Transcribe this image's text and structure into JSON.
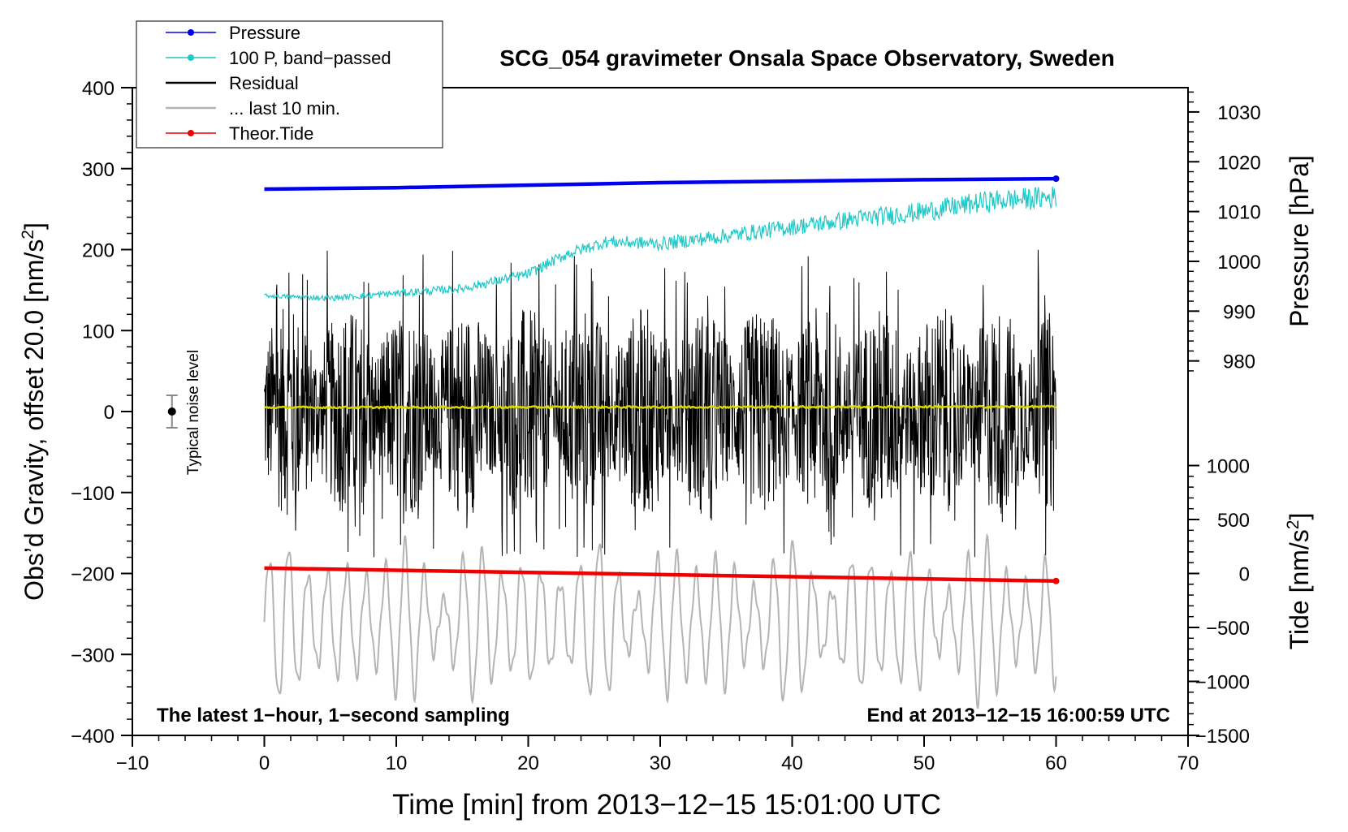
{
  "chart_data": {
    "type": "line",
    "title": "SCG_054 gravimeter Onsala Space Observatory, Sweden",
    "xlabel": "Time [min] from 2013−12−15 15:01:00 UTC",
    "ylabel": "Obs’d Gravity, offset 20.0 [nm/s",
    "ylabel_sup": "2",
    "ylabel_end": "]",
    "right_pressure_label": "Pressure [hPa]",
    "right_tide_label": "Tide [nm/s",
    "right_tide_label_sup": "2",
    "right_tide_label_end": "]",
    "xlim": [
      -10,
      70
    ],
    "ylim": [
      -400,
      400
    ],
    "x_ticks": [
      -10,
      0,
      10,
      20,
      30,
      40,
      50,
      60,
      70
    ],
    "x_tick_labels": [
      "−10",
      "0",
      "10",
      "20",
      "30",
      "40",
      "50",
      "60",
      "70"
    ],
    "y_ticks": [
      400,
      300,
      200,
      100,
      0,
      -100,
      -200,
      -300,
      -400
    ],
    "y_tick_labels": [
      "400",
      "300",
      "200",
      "100",
      "0",
      "−100",
      "−200",
      "−300",
      "−400"
    ],
    "pressure_axis": {
      "ticks": [
        1030,
        1020,
        1010,
        1000,
        990,
        980
      ],
      "tick_labels": [
        "1030",
        "1020",
        "1010",
        "1000",
        "990",
        "980"
      ],
      "gravity_at_1030": 370,
      "gravity_per_hpa": 6.15
    },
    "tide_axis": {
      "ticks": [
        1000,
        500,
        0,
        -500,
        -1000,
        -1500
      ],
      "tick_labels": [
        "1000",
        "500",
        "0",
        "−500",
        "−1000",
        "−1500"
      ],
      "gravity_at_0": -200,
      "gravity_per_unit": 0.1333
    },
    "legend": {
      "position": "top-left",
      "entries": [
        {
          "label": "Pressure",
          "color": "#0000ee",
          "marker": true
        },
        {
          "label": "100 P, band−passed",
          "color": "#20c8c8",
          "marker": true
        },
        {
          "label": "Residual",
          "color": "#000000",
          "marker": false
        },
        {
          "label": "... last 10 min.",
          "color": "#b4b4b4",
          "marker": false
        },
        {
          "label": "Theor.Tide",
          "color": "#ee0000",
          "marker": true
        }
      ]
    },
    "annotations": {
      "noise_label": "Typical noise level",
      "noise_bar": {
        "x": -7,
        "y": 0,
        "low": -20,
        "high": 20
      },
      "bottom_left": "The latest 1−hour, 1−second sampling",
      "bottom_right": "End at 2013−12−15 16:00:59 UTC"
    },
    "series": [
      {
        "name": "Pressure",
        "color": "#0000ee",
        "unit": "hPa",
        "x": [
          0,
          10,
          20,
          30,
          40,
          50,
          60
        ],
        "values": [
          1014.5,
          1014.8,
          1015.3,
          1015.8,
          1016.1,
          1016.4,
          1016.6
        ]
      },
      {
        "name": "100 P, band−passed",
        "color": "#20c8c8",
        "unit": "nm/s2",
        "x": [
          0,
          5,
          10,
          15,
          20,
          23,
          26,
          30,
          35,
          40,
          45,
          50,
          55,
          60
        ],
        "values": [
          143,
          140,
          146,
          152,
          170,
          195,
          210,
          207,
          217,
          228,
          238,
          247,
          260,
          265
        ],
        "noise": 6
      },
      {
        "name": "Residual",
        "color": "#000000",
        "unit": "nm/s2",
        "x": [
          0,
          60
        ],
        "envelope": 130,
        "peak_max": 200,
        "peak_min": -180
      },
      {
        "name": "Residual mean",
        "color": "#d8d800",
        "unit": "nm/s2",
        "x": [
          0,
          60
        ],
        "values": [
          5,
          6
        ]
      },
      {
        "name": "... last 10 min.",
        "color": "#b4b4b4",
        "unit": "nm/s2",
        "x": [
          0,
          60
        ],
        "center": -260,
        "amplitude": 80,
        "min": -400,
        "max": -100
      },
      {
        "name": "Theor.Tide",
        "color": "#ee0000",
        "unit": "nm/s2",
        "x": [
          0,
          60
        ],
        "values": [
          50,
          -70
        ]
      }
    ]
  }
}
